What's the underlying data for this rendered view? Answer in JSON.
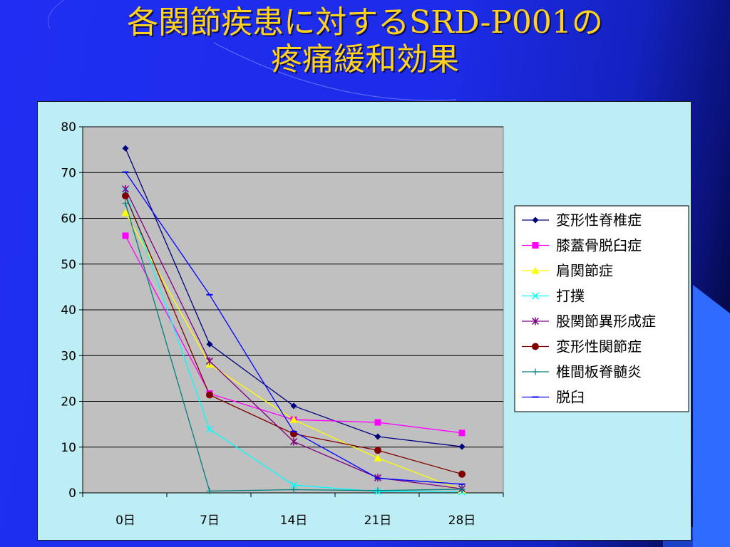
{
  "title": {
    "line1": "各関節疾患に対するSRD-P001の",
    "line2": "疼痛緩和効果"
  },
  "colors": {
    "title": "#ffd21f",
    "background": "#1f2ef2",
    "chart_area": "#bdeef5",
    "plot_area": "#c0c0c0"
  },
  "chart_data": {
    "type": "line",
    "title": "",
    "xlabel": "",
    "ylabel": "",
    "categories": [
      "0日",
      "7日",
      "14日",
      "21日",
      "28日"
    ],
    "ylim": [
      0,
      80
    ],
    "yticks": [
      "0",
      "10",
      "20",
      "30",
      "40",
      "50",
      "60",
      "70",
      "80"
    ],
    "grid": true,
    "legend_position": "right",
    "series": [
      {
        "name": "変形性脊椎症",
        "color": "#000080",
        "marker": "diamond",
        "values": [
          75.3,
          32.5,
          19.0,
          12.3,
          10.1
        ]
      },
      {
        "name": "膝蓋骨脱臼症",
        "color": "#ff00ff",
        "marker": "square",
        "values": [
          56.2,
          21.7,
          16.0,
          15.4,
          13.1
        ]
      },
      {
        "name": "肩関節症",
        "color": "#ffff00",
        "marker": "triangle",
        "values": [
          61.2,
          28.1,
          16.0,
          7.6,
          0.6
        ]
      },
      {
        "name": "打撲",
        "color": "#00ffff",
        "marker": "x",
        "values": [
          65.9,
          13.9,
          1.7,
          0.3,
          0.2
        ]
      },
      {
        "name": "股関節異形成症",
        "color": "#800080",
        "marker": "star",
        "values": [
          66.4,
          28.8,
          11.2,
          3.3,
          0.9
        ]
      },
      {
        "name": "変形性関節症",
        "color": "#800000",
        "marker": "circle",
        "values": [
          64.9,
          21.4,
          12.9,
          9.3,
          4.1
        ]
      },
      {
        "name": "椎間板脊髄炎",
        "color": "#008080",
        "marker": "plus",
        "values": [
          63.3,
          0.4,
          0.7,
          0.5,
          0.8
        ]
      },
      {
        "name": "脱臼",
        "color": "#0000ff",
        "marker": "dash",
        "values": [
          70.1,
          43.3,
          13.4,
          3.2,
          1.9
        ]
      }
    ]
  }
}
